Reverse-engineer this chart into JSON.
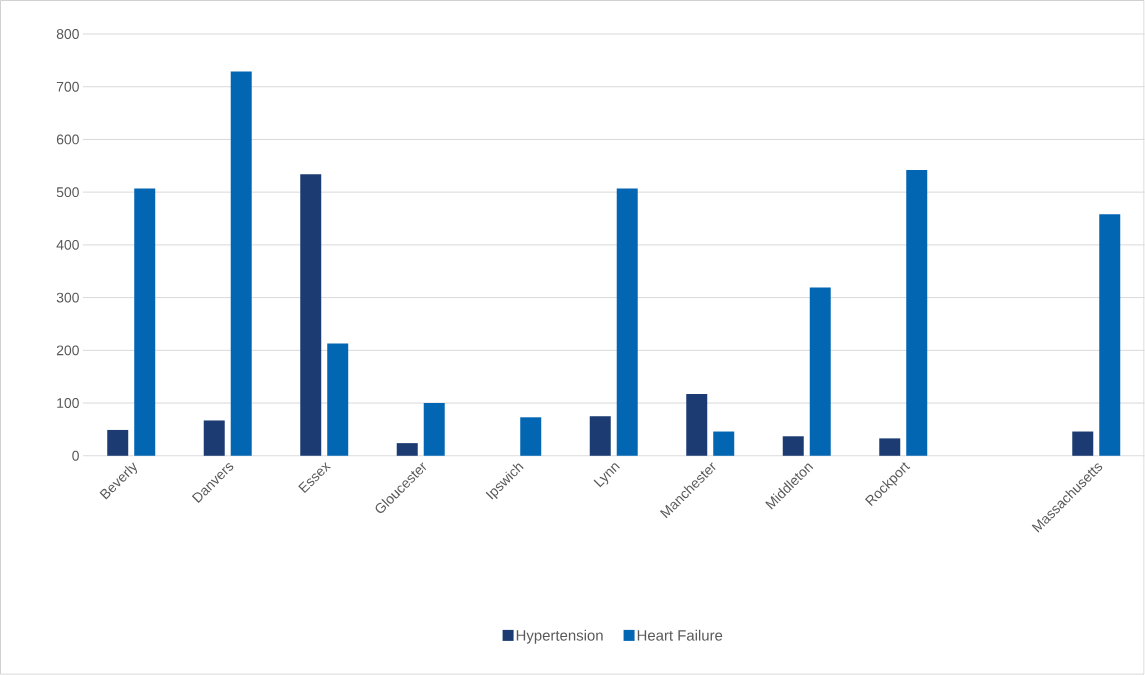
{
  "chart_data": {
    "type": "bar",
    "categories": [
      "Beverly",
      "Danvers",
      "Essex",
      "Gloucester",
      "Ipswich",
      "Lynn",
      "Manchester",
      "Middleton",
      "Rockport",
      null,
      "Massachusetts"
    ],
    "series": [
      {
        "name": "Hypertension",
        "color": "#1b3b72",
        "values": [
          49,
          67,
          534,
          24,
          null,
          75,
          117,
          37,
          33,
          null,
          46
        ]
      },
      {
        "name": "Heart Failure",
        "color": "#0266b3",
        "values": [
          507,
          729,
          213,
          100,
          73,
          507,
          46,
          319,
          542,
          null,
          458
        ]
      }
    ],
    "ylim": [
      0,
      800
    ],
    "yticks": [
      0,
      100,
      200,
      300,
      400,
      500,
      600,
      700,
      800
    ],
    "grid": "y",
    "legend": "bottom"
  }
}
